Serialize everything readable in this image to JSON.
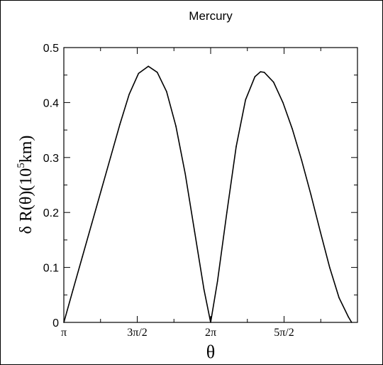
{
  "chart_data": {
    "type": "line",
    "title": "Mercury",
    "xlabel": "θ",
    "ylabel": "δ R(θ)(10",
    "ylabel_sup": "5",
    "ylabel_tail": "km)",
    "xlim": [
      3.14159,
      9.42478
    ],
    "ylim": [
      0,
      0.5
    ],
    "grid": false,
    "x_ticks": [
      {
        "value": 3.14159,
        "label": "π"
      },
      {
        "value": 4.71239,
        "label": "3π/2"
      },
      {
        "value": 6.28319,
        "label": "2π"
      },
      {
        "value": 7.85398,
        "label": "5π/2"
      }
    ],
    "y_ticks": [
      {
        "value": 0,
        "label": "0"
      },
      {
        "value": 0.1,
        "label": "0.1"
      },
      {
        "value": 0.2,
        "label": "0.2"
      },
      {
        "value": 0.3,
        "label": "0.3"
      },
      {
        "value": 0.4,
        "label": "0.4"
      },
      {
        "value": 0.5,
        "label": "0.5"
      }
    ],
    "series": [
      {
        "color": "#000000",
        "points": [
          [
            3.142,
            0.0
          ],
          [
            3.34,
            0.06
          ],
          [
            3.54,
            0.12
          ],
          [
            3.74,
            0.18
          ],
          [
            3.94,
            0.24
          ],
          [
            4.14,
            0.3
          ],
          [
            4.34,
            0.36
          ],
          [
            4.54,
            0.415
          ],
          [
            4.74,
            0.453
          ],
          [
            4.95,
            0.466
          ],
          [
            5.14,
            0.455
          ],
          [
            5.34,
            0.42
          ],
          [
            5.54,
            0.357
          ],
          [
            5.74,
            0.27
          ],
          [
            5.94,
            0.165
          ],
          [
            6.14,
            0.06
          ],
          [
            6.283,
            0.0
          ],
          [
            6.43,
            0.075
          ],
          [
            6.63,
            0.2
          ],
          [
            6.83,
            0.32
          ],
          [
            7.03,
            0.405
          ],
          [
            7.23,
            0.447
          ],
          [
            7.35,
            0.456
          ],
          [
            7.43,
            0.455
          ],
          [
            7.63,
            0.437
          ],
          [
            7.83,
            0.4
          ],
          [
            8.03,
            0.352
          ],
          [
            8.23,
            0.295
          ],
          [
            8.43,
            0.232
          ],
          [
            8.63,
            0.165
          ],
          [
            8.83,
            0.1
          ],
          [
            9.03,
            0.045
          ],
          [
            9.23,
            0.01
          ],
          [
            9.3,
            0.0
          ]
        ]
      }
    ]
  }
}
